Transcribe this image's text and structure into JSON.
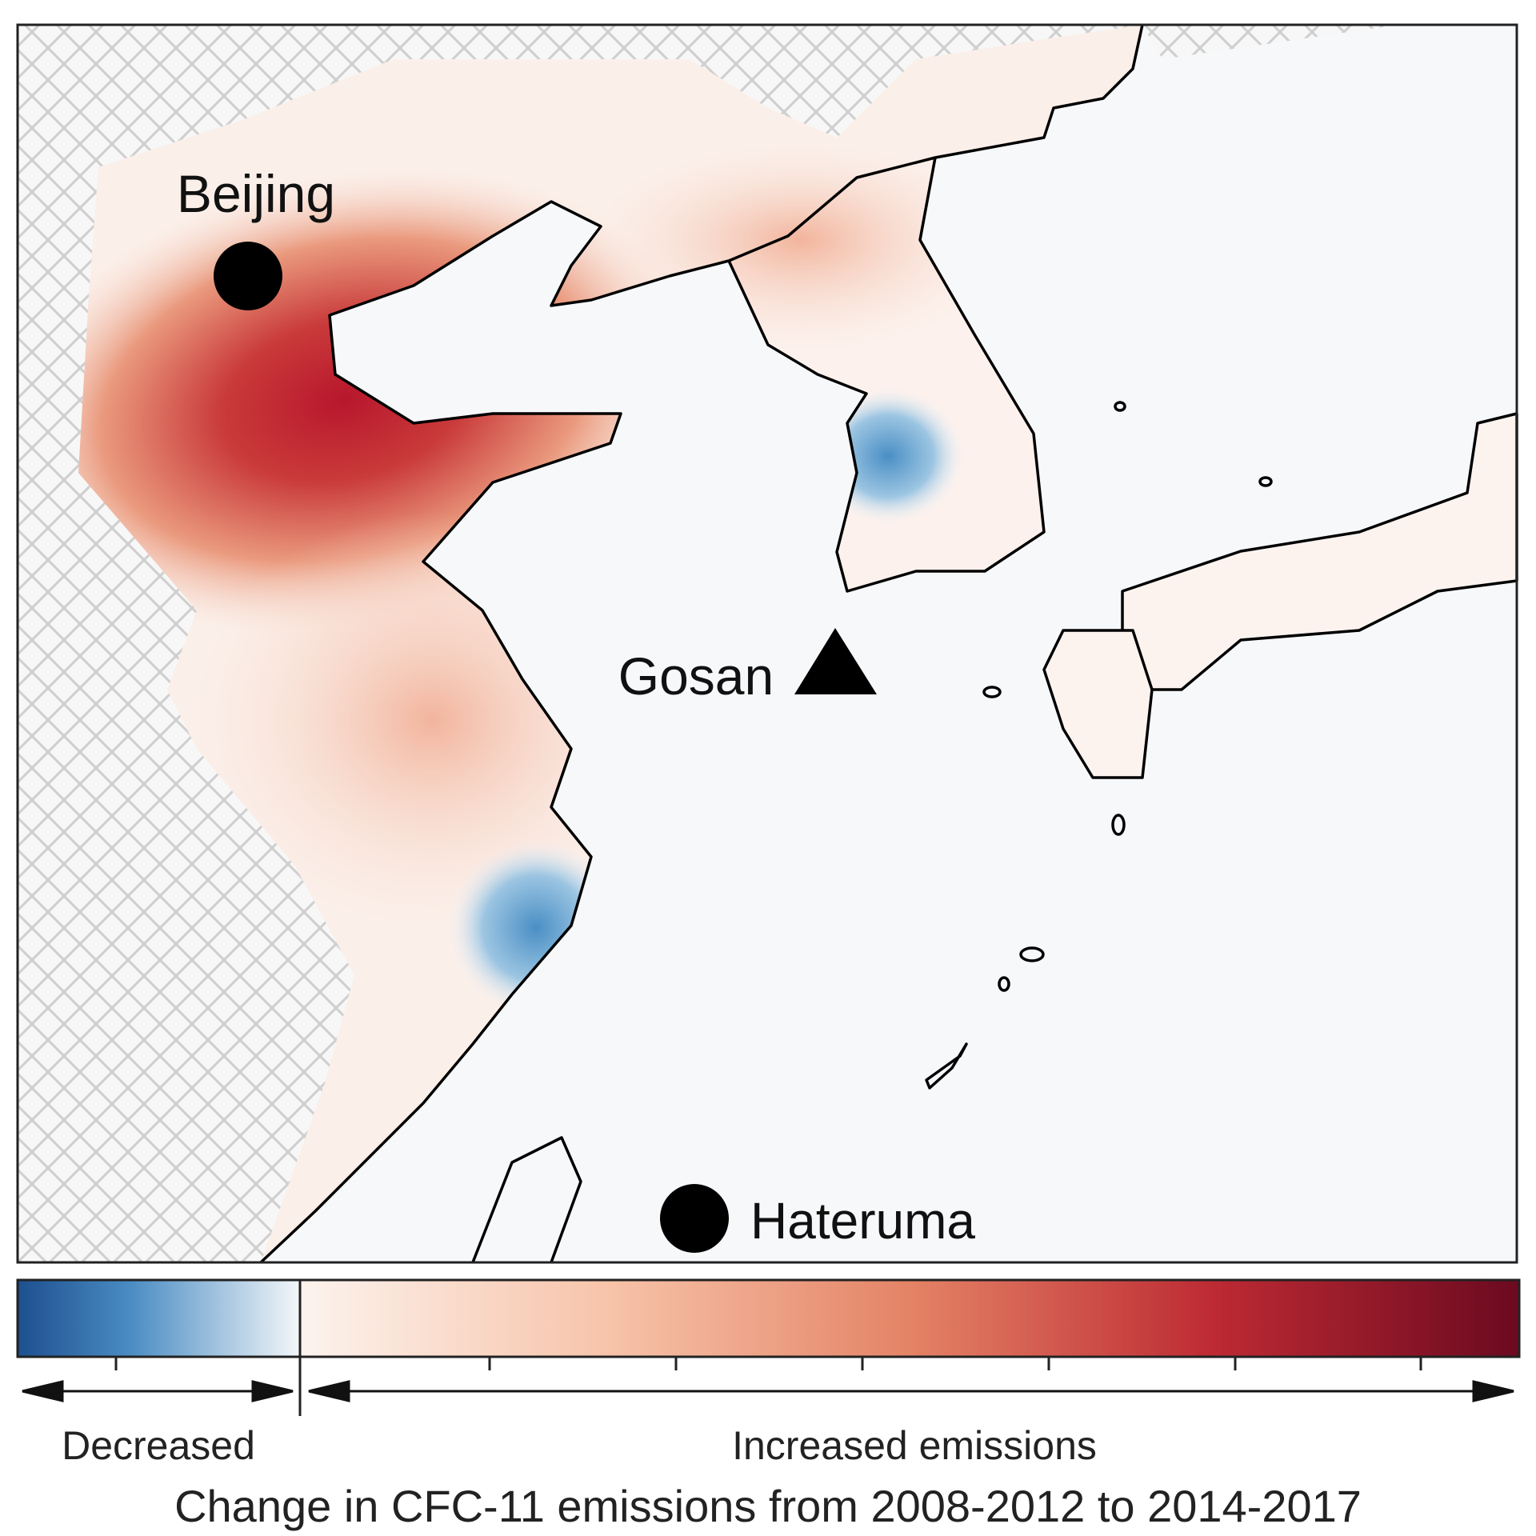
{
  "map": {
    "markers": [
      {
        "label": "Beijing"
      },
      {
        "label": "Gosan"
      },
      {
        "label": "Hateruma"
      }
    ]
  },
  "colorbar": {
    "left_label": "Decreased",
    "right_label": "Increased emissions"
  },
  "caption": "Change in CFC-11 emissions from 2008-2012 to 2014-2017"
}
